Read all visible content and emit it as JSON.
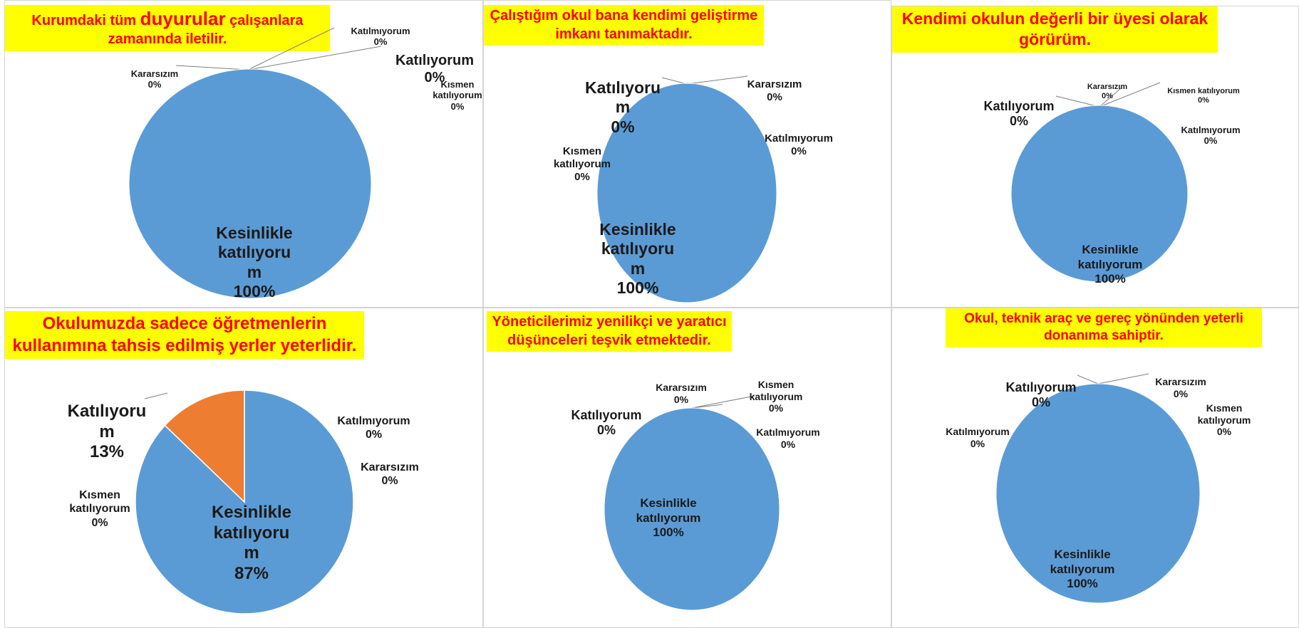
{
  "colors": {
    "blue": "#5b9bd5",
    "orange": "#ed7d31",
    "title_bg": "#ffff00",
    "title_fg": "#ff0000"
  },
  "chart_data": [
    {
      "type": "pie",
      "title_parts": [
        "Kurumdaki tüm ",
        "duyurular",
        " çalışanlara zamanında iletilir."
      ],
      "slices": [
        {
          "label": "Kesinlikle katılıyorum",
          "display": "Kesinlikle\nkatılıyoru\nm",
          "value": 100,
          "pct": "100%"
        },
        {
          "label": "Katılıyorum",
          "display": "Katılıyorum",
          "value": 0,
          "pct": "0%"
        },
        {
          "label": "Kısmen katılıyorum",
          "display": "Kısmen\nkatılıyorum",
          "value": 0,
          "pct": "0%"
        },
        {
          "label": "Kararsızım",
          "display": "Kararsızım",
          "value": 0,
          "pct": "0%"
        },
        {
          "label": "Katılmıyorum",
          "display": "Katılmıyorum",
          "value": 0,
          "pct": "0%"
        }
      ]
    },
    {
      "type": "pie",
      "title": "Çalıştığım okul bana kendimi geliştirme imkanı tanımaktadır.",
      "slices": [
        {
          "label": "Kesinlikle katılıyorum",
          "display": "Kesinlikle\nkatılıyoru\nm",
          "value": 100,
          "pct": "100%"
        },
        {
          "label": "Katılıyorum",
          "display": "Katılıyoru\nm",
          "value": 0,
          "pct": "0%"
        },
        {
          "label": "Kısmen katılıyorum",
          "display": "Kısmen\nkatılıyorum",
          "value": 0,
          "pct": "0%"
        },
        {
          "label": "Kararsızım",
          "display": "Kararsızım",
          "value": 0,
          "pct": "0%"
        },
        {
          "label": "Katılmıyorum",
          "display": "Katılmıyorum",
          "value": 0,
          "pct": "0%"
        }
      ]
    },
    {
      "type": "pie",
      "title": "Kendimi okulun değerli bir üyesi olarak görürüm.",
      "slices": [
        {
          "label": "Kesinlikle katılıyorum",
          "display": "Kesinlikle\nkatılıyorum",
          "value": 100,
          "pct": "100%"
        },
        {
          "label": "Katılıyorum",
          "display": "Katılıyorum",
          "value": 0,
          "pct": "0%"
        },
        {
          "label": "Kararsızım",
          "display": "Kararsızım",
          "value": 0,
          "pct": "0%"
        },
        {
          "label": "Kısmen katılıyorum",
          "display": "Kısmen katılıyorum",
          "value": 0,
          "pct": "0%"
        },
        {
          "label": "Katılmıyorum",
          "display": "Katılmıyorum",
          "value": 0,
          "pct": "0%"
        }
      ]
    },
    {
      "type": "pie",
      "title": "Okulumuzda sadece öğretmenlerin kullanımına tahsis edilmiş yerler yeterlidir.",
      "slices": [
        {
          "label": "Kesinlikle katılıyorum",
          "display": "Kesinlikle\nkatılıyoru\nm",
          "value": 87,
          "pct": "87%"
        },
        {
          "label": "Katılıyorum",
          "display": "Katılıyoru\nm",
          "value": 13,
          "pct": "13%"
        },
        {
          "label": "Kısmen katılıyorum",
          "display": "Kısmen\nkatılıyorum",
          "value": 0,
          "pct": "0%"
        },
        {
          "label": "Katılmıyorum",
          "display": "Katılmıyorum",
          "value": 0,
          "pct": "0%"
        },
        {
          "label": "Kararsızım",
          "display": "Kararsızım",
          "value": 0,
          "pct": "0%"
        }
      ]
    },
    {
      "type": "pie",
      "title": "Yöneticilerimiz yenilikçi ve yaratıcı düşünceleri teşvik etmektedir.",
      "slices": [
        {
          "label": "Kesinlikle katılıyorum",
          "display": "Kesinlikle\nkatılıyorum",
          "value": 100,
          "pct": "100%"
        },
        {
          "label": "Katılıyorum",
          "display": "Katılıyorum",
          "value": 0,
          "pct": "0%"
        },
        {
          "label": "Kararsızım",
          "display": "Kararsızım",
          "value": 0,
          "pct": "0%"
        },
        {
          "label": "Kısmen katılıyorum",
          "display": "Kısmen\nkatılıyorum",
          "value": 0,
          "pct": "0%"
        },
        {
          "label": "Katılmıyorum",
          "display": "Katılmıyorum",
          "value": 0,
          "pct": "0%"
        }
      ]
    },
    {
      "type": "pie",
      "title": "Okul, teknik araç ve gereç yönünden yeterli donanıma sahiptir.",
      "slices": [
        {
          "label": "Kesinlikle katılıyorum",
          "display": "Kesinlikle\nkatılıyorum",
          "value": 100,
          "pct": "100%"
        },
        {
          "label": "Katılıyorum",
          "display": "Katılıyorum",
          "value": 0,
          "pct": "0%"
        },
        {
          "label": "Kararsızım",
          "display": "Kararsızım",
          "value": 0,
          "pct": "0%"
        },
        {
          "label": "Kısmen katılıyorum",
          "display": "Kısmen\nkatılıyorum",
          "value": 0,
          "pct": "0%"
        },
        {
          "label": "Katılmıyorum",
          "display": "Katılmıyorum",
          "value": 0,
          "pct": "0%"
        }
      ]
    }
  ]
}
